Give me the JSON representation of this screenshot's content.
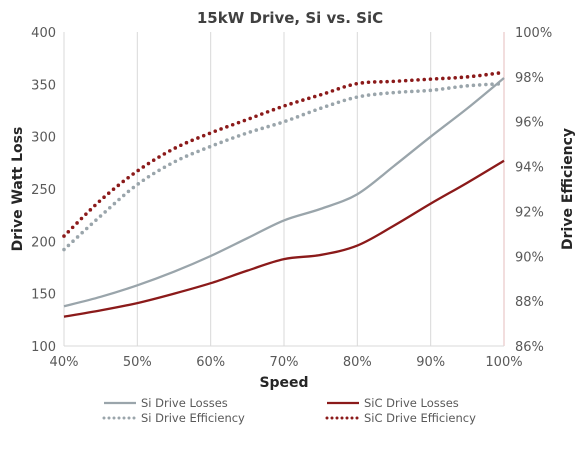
{
  "chart_data": {
    "type": "line",
    "title": "15kW Drive, Si vs. SiC",
    "xlabel": "Speed",
    "ylabel": "Drive Watt Loss",
    "y2label": "Drive Efficiency",
    "x": [
      40,
      50,
      60,
      70,
      80,
      90,
      100
    ],
    "x_tick_labels": [
      "40%",
      "50%",
      "60%",
      "70%",
      "80%",
      "90%",
      "100%"
    ],
    "ylim": [
      100,
      400
    ],
    "y_ticks": [
      100,
      150,
      200,
      250,
      300,
      350,
      400
    ],
    "y_tick_labels": [
      "100",
      "150",
      "200",
      "250",
      "300",
      "350",
      "400"
    ],
    "y2lim": [
      86,
      100
    ],
    "y2_ticks": [
      86,
      88,
      90,
      92,
      94,
      96,
      98,
      100
    ],
    "y2_tick_labels": [
      "86%",
      "88%",
      "90%",
      "92%",
      "94%",
      "96%",
      "98%",
      "100%"
    ],
    "grid": "vertical",
    "legend_position": "bottom",
    "series": [
      {
        "name": "Si Drive Losses",
        "axis": "left",
        "style": "solid",
        "color": "#9aa5ab",
        "x": [
          40,
          45,
          50,
          55,
          60,
          65,
          70,
          75,
          80,
          85,
          90,
          95,
          100
        ],
        "values": [
          138,
          147,
          158,
          171,
          186,
          203,
          220,
          231,
          245,
          272,
          300,
          327,
          356
        ]
      },
      {
        "name": "Si Drive Efficiency",
        "axis": "right",
        "style": "dotted",
        "color": "#9aa5ab",
        "x": [
          40,
          45,
          50,
          55,
          60,
          65,
          70,
          75,
          80,
          85,
          90,
          95,
          100
        ],
        "values": [
          90.3,
          91.8,
          93.2,
          94.2,
          94.9,
          95.5,
          96.0,
          96.6,
          97.1,
          97.3,
          97.4,
          97.6,
          97.7
        ]
      },
      {
        "name": "SiC Drive Losses",
        "axis": "left",
        "style": "solid",
        "color": "#8b1a1a",
        "x": [
          40,
          45,
          50,
          55,
          60,
          65,
          70,
          75,
          80,
          85,
          90,
          95,
          100
        ],
        "values": [
          128,
          134,
          141,
          150,
          160,
          172,
          183,
          187,
          196,
          215,
          236,
          256,
          277
        ]
      },
      {
        "name": "SiC Drive Efficiency",
        "axis": "right",
        "style": "dotted",
        "color": "#8b1a1a",
        "x": [
          40,
          45,
          50,
          55,
          60,
          65,
          70,
          75,
          80,
          85,
          90,
          95,
          100
        ],
        "values": [
          90.9,
          92.5,
          93.8,
          94.8,
          95.5,
          96.1,
          96.7,
          97.2,
          97.7,
          97.8,
          97.9,
          98.0,
          98.2
        ]
      }
    ]
  }
}
